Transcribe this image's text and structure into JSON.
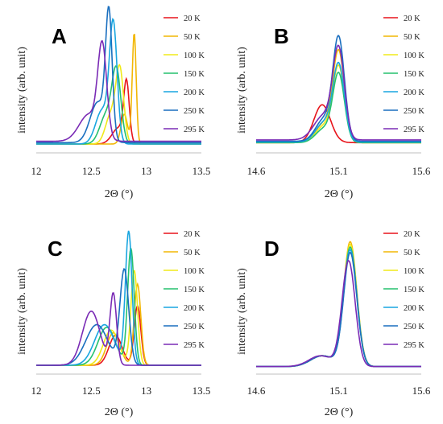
{
  "legend": [
    {
      "name": "20 K",
      "color": "#e8141b"
    },
    {
      "name": "50 K",
      "color": "#f2b705"
    },
    {
      "name": "100 K",
      "color": "#f0ea1a"
    },
    {
      "name": "150 K",
      "color": "#25c16f"
    },
    {
      "name": "200 K",
      "color": "#19a6e0"
    },
    {
      "name": "250 K",
      "color": "#1a6fbf"
    },
    {
      "name": "295 K",
      "color": "#7a2bb5"
    }
  ],
  "chart_data": [
    {
      "type": "line",
      "panel": "A",
      "xlabel": "2Θ (°)",
      "ylabel": "intensity (arb. unit)",
      "xlim": [
        12,
        13.5
      ],
      "xticks": [
        "12",
        "12.5",
        "13",
        "13.5"
      ],
      "series": [
        {
          "name": "20 K",
          "peaks": [
            [
              12.82,
              0.42,
              0.025
            ],
            [
              12.75,
              0.12,
              0.06
            ]
          ],
          "baseline": 0.03
        },
        {
          "name": "50 K",
          "peaks": [
            [
              12.89,
              0.82,
              0.018
            ],
            [
              12.8,
              0.22,
              0.03
            ]
          ],
          "baseline": 0.03
        },
        {
          "name": "100 K",
          "peaks": [
            [
              12.76,
              0.52,
              0.035
            ],
            [
              12.68,
              0.22,
              0.05
            ]
          ],
          "baseline": 0.03
        },
        {
          "name": "150 K",
          "peaks": [
            [
              12.73,
              0.5,
              0.04
            ],
            [
              12.64,
              0.22,
              0.06
            ]
          ],
          "baseline": 0.03
        },
        {
          "name": "200 K",
          "peaks": [
            [
              12.7,
              0.86,
              0.035
            ],
            [
              12.6,
              0.25,
              0.06
            ]
          ],
          "baseline": 0.03
        },
        {
          "name": "250 K",
          "peaks": [
            [
              12.66,
              0.9,
              0.03
            ],
            [
              12.56,
              0.3,
              0.07
            ]
          ],
          "baseline": 0.04
        },
        {
          "name": "295 K",
          "peaks": [
            [
              12.6,
              0.66,
              0.04
            ],
            [
              12.48,
              0.2,
              0.09
            ]
          ],
          "baseline": 0.05
        }
      ]
    },
    {
      "type": "line",
      "panel": "B",
      "xlabel": "2Θ (°)",
      "ylabel": "intensity (arb. unit)",
      "xlim": [
        14.6,
        15.6
      ],
      "xticks": [
        "14.6",
        "15.1",
        "15.6"
      ],
      "series": [
        {
          "name": "20 K",
          "peaks": [
            [
              15.0,
              0.28,
              0.05
            ]
          ],
          "baseline": 0.04
        },
        {
          "name": "50 K",
          "peaks": [
            [
              15.1,
              0.66,
              0.035
            ],
            [
              15.01,
              0.14,
              0.05
            ]
          ],
          "baseline": 0.04
        },
        {
          "name": "100 K",
          "peaks": [
            [
              15.1,
              0.55,
              0.035
            ],
            [
              15.01,
              0.12,
              0.05
            ]
          ],
          "baseline": 0.04
        },
        {
          "name": "150 K",
          "peaks": [
            [
              15.1,
              0.5,
              0.035
            ],
            [
              15.01,
              0.1,
              0.05
            ]
          ],
          "baseline": 0.04
        },
        {
          "name": "200 K",
          "peaks": [
            [
              15.1,
              0.56,
              0.035
            ],
            [
              15.01,
              0.14,
              0.05
            ]
          ],
          "baseline": 0.045
        },
        {
          "name": "250 K",
          "peaks": [
            [
              15.1,
              0.75,
              0.035
            ],
            [
              15.01,
              0.16,
              0.05
            ]
          ],
          "baseline": 0.05
        },
        {
          "name": "295 K",
          "peaks": [
            [
              15.1,
              0.64,
              0.035
            ],
            [
              15.01,
              0.18,
              0.06
            ]
          ],
          "baseline": 0.06
        }
      ]
    },
    {
      "type": "line",
      "panel": "C",
      "xlabel": "2Θ (°)",
      "ylabel": "intensity (arb. unit)",
      "xlim": [
        12,
        13.5
      ],
      "xticks": [
        "12",
        "12.5",
        "13",
        "13.5"
      ],
      "series": [
        {
          "name": "20 K",
          "peaks": [
            [
              12.92,
              0.44,
              0.03
            ],
            [
              12.72,
              0.22,
              0.06
            ]
          ],
          "baseline": 0.03
        },
        {
          "name": "50 K",
          "peaks": [
            [
              12.92,
              0.6,
              0.03
            ],
            [
              12.7,
              0.24,
              0.06
            ]
          ],
          "baseline": 0.03
        },
        {
          "name": "100 K",
          "peaks": [
            [
              12.89,
              0.7,
              0.03
            ],
            [
              12.68,
              0.26,
              0.07
            ]
          ],
          "baseline": 0.03
        },
        {
          "name": "150 K",
          "peaks": [
            [
              12.86,
              0.86,
              0.03
            ],
            [
              12.64,
              0.28,
              0.08
            ]
          ],
          "baseline": 0.03
        },
        {
          "name": "200 K",
          "peaks": [
            [
              12.84,
              0.98,
              0.03
            ],
            [
              12.62,
              0.3,
              0.09
            ]
          ],
          "baseline": 0.03
        },
        {
          "name": "250 K",
          "peaks": [
            [
              12.8,
              0.7,
              0.04
            ],
            [
              12.55,
              0.3,
              0.1
            ]
          ],
          "baseline": 0.03
        },
        {
          "name": "295 K",
          "peaks": [
            [
              12.7,
              0.52,
              0.03
            ],
            [
              12.5,
              0.4,
              0.08
            ]
          ],
          "baseline": 0.03
        }
      ]
    },
    {
      "type": "line",
      "panel": "D",
      "xlabel": "2Θ (°)",
      "ylabel": "intensity (arb. unit)",
      "xlim": [
        14.6,
        15.6
      ],
      "xticks": [
        "14.6",
        "15.1",
        "15.6"
      ],
      "series": [
        {
          "name": "20 K",
          "peaks": [
            [
              15.17,
              0.88,
              0.04
            ],
            [
              15.0,
              0.08,
              0.07
            ]
          ],
          "baseline": 0.02
        },
        {
          "name": "50 K",
          "peaks": [
            [
              15.17,
              0.92,
              0.04
            ],
            [
              15.0,
              0.08,
              0.07
            ]
          ],
          "baseline": 0.02
        },
        {
          "name": "100 K",
          "peaks": [
            [
              15.17,
              0.9,
              0.04
            ],
            [
              15.0,
              0.08,
              0.07
            ]
          ],
          "baseline": 0.02
        },
        {
          "name": "150 K",
          "peaks": [
            [
              15.17,
              0.88,
              0.04
            ],
            [
              15.0,
              0.08,
              0.07
            ]
          ],
          "baseline": 0.02
        },
        {
          "name": "200 K",
          "peaks": [
            [
              15.17,
              0.86,
              0.04
            ],
            [
              15.0,
              0.08,
              0.07
            ]
          ],
          "baseline": 0.02
        },
        {
          "name": "250 K",
          "peaks": [
            [
              15.17,
              0.84,
              0.04
            ],
            [
              15.0,
              0.08,
              0.07
            ]
          ],
          "baseline": 0.02
        },
        {
          "name": "295 K",
          "peaks": [
            [
              15.16,
              0.78,
              0.04
            ],
            [
              14.99,
              0.08,
              0.07
            ]
          ],
          "baseline": 0.02
        }
      ]
    }
  ]
}
